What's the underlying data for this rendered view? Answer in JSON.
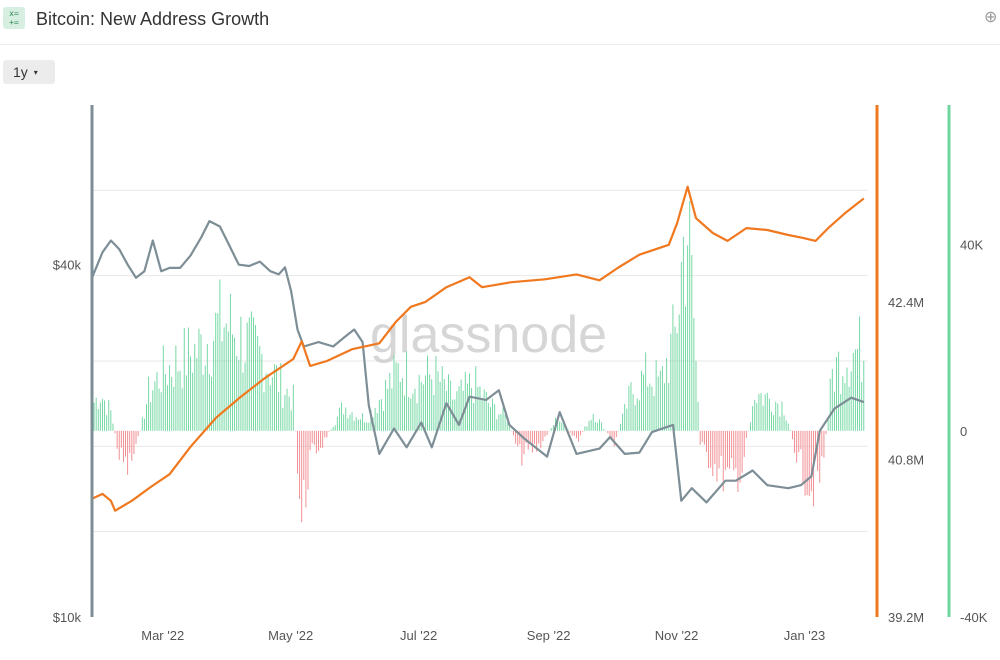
{
  "header": {
    "icon": "calculator-icon",
    "icon_glyph_top": "x=",
    "icon_glyph_bottom": "+=",
    "title": "Bitcoin: New Address Growth",
    "action_icon": "add-circle-icon"
  },
  "controls": {
    "range_label": "1y",
    "range_caret": "▾"
  },
  "watermark": "glassnode",
  "colors": {
    "price_line": "#7d8e96",
    "addresses_line": "#f0781f",
    "bar_positive": "#6fd6a0",
    "bar_negative": "#f08a8f",
    "axis_price": "#7d8e96",
    "axis_addresses": "#f0781f",
    "axis_growth": "#6fd6a0",
    "grid": "#e8e8e8"
  },
  "chart_data": {
    "type": "line",
    "title": "Bitcoin: New Address Growth",
    "x_ticks": [
      "Mar '22",
      "May '22",
      "Jul '22",
      "Sep '22",
      "Nov '22",
      "Jan '23"
    ],
    "x_range": [
      "2022-02-01",
      "2023-02-06"
    ],
    "axes": {
      "price": {
        "side": "left",
        "scale": "log",
        "ticks": [
          "$10k",
          "$40k"
        ],
        "tick_values": [
          10000,
          40000
        ],
        "range": [
          10000,
          75000
        ]
      },
      "addresses": {
        "side": "right",
        "ticks": [
          "39.2M",
          "40.8M",
          "42.4M"
        ],
        "tick_values": [
          39.2,
          40.8,
          42.4
        ],
        "unit": "M",
        "range": [
          39.2,
          44.4
        ]
      },
      "growth": {
        "side": "right",
        "ticks": [
          "-40K",
          "0",
          "40K"
        ],
        "tick_values": [
          -40000,
          0,
          40000
        ],
        "range": [
          -40000,
          70000
        ]
      }
    },
    "grid": true,
    "series": [
      {
        "name": "Price",
        "axis": "price",
        "kind": "line",
        "points": [
          [
            "2022-02-01",
            38000
          ],
          [
            "2022-02-06",
            42000
          ],
          [
            "2022-02-10",
            44000
          ],
          [
            "2022-02-14",
            42500
          ],
          [
            "2022-02-18",
            40000
          ],
          [
            "2022-02-22",
            38000
          ],
          [
            "2022-02-26",
            39000
          ],
          [
            "2022-03-02",
            44000
          ],
          [
            "2022-03-06",
            39000
          ],
          [
            "2022-03-10",
            39500
          ],
          [
            "2022-03-15",
            39500
          ],
          [
            "2022-03-20",
            41500
          ],
          [
            "2022-03-25",
            44500
          ],
          [
            "2022-03-29",
            47500
          ],
          [
            "2022-04-03",
            46500
          ],
          [
            "2022-04-07",
            43500
          ],
          [
            "2022-04-12",
            40000
          ],
          [
            "2022-04-17",
            39800
          ],
          [
            "2022-04-22",
            40500
          ],
          [
            "2022-04-27",
            39000
          ],
          [
            "2022-05-01",
            38500
          ],
          [
            "2022-05-04",
            39600
          ],
          [
            "2022-05-07",
            36000
          ],
          [
            "2022-05-10",
            31000
          ],
          [
            "2022-05-13",
            29000
          ],
          [
            "2022-05-20",
            29500
          ],
          [
            "2022-05-27",
            29000
          ],
          [
            "2022-06-01",
            30000
          ],
          [
            "2022-06-06",
            31000
          ],
          [
            "2022-06-10",
            29500
          ],
          [
            "2022-06-13",
            23000
          ],
          [
            "2022-06-18",
            19000
          ],
          [
            "2022-06-25",
            21000
          ],
          [
            "2022-07-01",
            19500
          ],
          [
            "2022-07-08",
            21500
          ],
          [
            "2022-07-13",
            19500
          ],
          [
            "2022-07-20",
            23200
          ],
          [
            "2022-07-26",
            21300
          ],
          [
            "2022-07-31",
            23800
          ],
          [
            "2022-08-08",
            23500
          ],
          [
            "2022-08-14",
            24400
          ],
          [
            "2022-08-19",
            21300
          ],
          [
            "2022-08-26",
            20200
          ],
          [
            "2022-09-06",
            18800
          ],
          [
            "2022-09-12",
            22400
          ],
          [
            "2022-09-20",
            19000
          ],
          [
            "2022-10-01",
            19400
          ],
          [
            "2022-10-06",
            20300
          ],
          [
            "2022-10-13",
            19000
          ],
          [
            "2022-10-20",
            19100
          ],
          [
            "2022-10-26",
            20700
          ],
          [
            "2022-11-05",
            21300
          ],
          [
            "2022-11-09",
            15800
          ],
          [
            "2022-11-14",
            16600
          ],
          [
            "2022-11-21",
            15700
          ],
          [
            "2022-11-30",
            17100
          ],
          [
            "2022-12-05",
            17100
          ],
          [
            "2022-12-13",
            17800
          ],
          [
            "2022-12-20",
            16800
          ],
          [
            "2022-12-30",
            16600
          ],
          [
            "2023-01-05",
            16800
          ],
          [
            "2023-01-10",
            17400
          ],
          [
            "2023-01-14",
            20800
          ],
          [
            "2023-01-21",
            22700
          ],
          [
            "2023-01-29",
            23700
          ],
          [
            "2023-02-04",
            23300
          ]
        ]
      },
      {
        "name": "Total Addresses",
        "axis": "addresses",
        "kind": "line",
        "points": [
          [
            "2022-02-01",
            40.4
          ],
          [
            "2022-02-06",
            40.45
          ],
          [
            "2022-02-10",
            40.38
          ],
          [
            "2022-02-12",
            40.28
          ],
          [
            "2022-02-20",
            40.38
          ],
          [
            "2022-03-01",
            40.52
          ],
          [
            "2022-03-10",
            40.65
          ],
          [
            "2022-03-20",
            40.93
          ],
          [
            "2022-04-01",
            41.22
          ],
          [
            "2022-04-12",
            41.42
          ],
          [
            "2022-04-24",
            41.62
          ],
          [
            "2022-05-08",
            41.82
          ],
          [
            "2022-05-12",
            42.0
          ],
          [
            "2022-05-16",
            41.75
          ],
          [
            "2022-05-24",
            41.8
          ],
          [
            "2022-06-05",
            41.92
          ],
          [
            "2022-06-18",
            41.98
          ],
          [
            "2022-06-26",
            42.2
          ],
          [
            "2022-07-03",
            42.35
          ],
          [
            "2022-07-10",
            42.4
          ],
          [
            "2022-07-20",
            42.55
          ],
          [
            "2022-07-31",
            42.65
          ],
          [
            "2022-08-06",
            42.55
          ],
          [
            "2022-08-20",
            42.6
          ],
          [
            "2022-09-05",
            42.63
          ],
          [
            "2022-09-20",
            42.68
          ],
          [
            "2022-10-01",
            42.62
          ],
          [
            "2022-10-10",
            42.75
          ],
          [
            "2022-10-20",
            42.88
          ],
          [
            "2022-11-03",
            42.98
          ],
          [
            "2022-11-07",
            43.2
          ],
          [
            "2022-11-12",
            43.57
          ],
          [
            "2022-11-16",
            43.25
          ],
          [
            "2022-11-24",
            43.1
          ],
          [
            "2022-12-01",
            43.02
          ],
          [
            "2022-12-10",
            43.15
          ],
          [
            "2022-12-20",
            43.13
          ],
          [
            "2022-12-30",
            43.08
          ],
          [
            "2023-01-06",
            43.05
          ],
          [
            "2023-01-12",
            43.02
          ],
          [
            "2023-01-18",
            43.15
          ],
          [
            "2023-01-26",
            43.3
          ],
          [
            "2023-02-04",
            43.45
          ]
        ]
      },
      {
        "name": "New Address Growth",
        "axis": "growth",
        "kind": "bar",
        "note": "daily bars, green positive / red negative; envelope values below",
        "envelope": [
          [
            "2022-02-01",
            8000
          ],
          [
            "2022-02-05",
            12000
          ],
          [
            "2022-02-10",
            6000
          ],
          [
            "2022-02-14",
            -8000
          ],
          [
            "2022-02-18",
            -12000
          ],
          [
            "2022-02-22",
            -6000
          ],
          [
            "2022-02-28",
            12000
          ],
          [
            "2022-03-06",
            18000
          ],
          [
            "2022-03-14",
            22000
          ],
          [
            "2022-03-24",
            26000
          ],
          [
            "2022-04-05",
            35000
          ],
          [
            "2022-04-15",
            28000
          ],
          [
            "2022-04-25",
            22000
          ],
          [
            "2022-05-03",
            14000
          ],
          [
            "2022-05-08",
            10000
          ],
          [
            "2022-05-10",
            -10000
          ],
          [
            "2022-05-12",
            -30000
          ],
          [
            "2022-05-16",
            -8000
          ],
          [
            "2022-05-22",
            -4000
          ],
          [
            "2022-06-01",
            8000
          ],
          [
            "2022-06-07",
            5000
          ],
          [
            "2022-06-12",
            4000
          ],
          [
            "2022-06-20",
            12000
          ],
          [
            "2022-06-28",
            20000
          ],
          [
            "2022-07-06",
            16000
          ],
          [
            "2022-07-14",
            18000
          ],
          [
            "2022-07-24",
            10000
          ],
          [
            "2022-08-02",
            15000
          ],
          [
            "2022-08-10",
            8000
          ],
          [
            "2022-08-18",
            4000
          ],
          [
            "2022-08-24",
            -8000
          ],
          [
            "2022-09-02",
            -5000
          ],
          [
            "2022-09-12",
            5000
          ],
          [
            "2022-09-20",
            -4000
          ],
          [
            "2022-09-28",
            6000
          ],
          [
            "2022-10-08",
            -4000
          ],
          [
            "2022-10-16",
            12000
          ],
          [
            "2022-10-24",
            18000
          ],
          [
            "2022-10-30",
            15000
          ],
          [
            "2022-11-06",
            30000
          ],
          [
            "2022-11-10",
            58000
          ],
          [
            "2022-11-12",
            66000
          ],
          [
            "2022-11-15",
            35000
          ],
          [
            "2022-11-18",
            -5000
          ],
          [
            "2022-11-26",
            -12000
          ],
          [
            "2022-12-02",
            -16000
          ],
          [
            "2022-12-08",
            -12000
          ],
          [
            "2022-12-14",
            12000
          ],
          [
            "2022-12-22",
            10000
          ],
          [
            "2022-12-28",
            8000
          ],
          [
            "2023-01-04",
            -10000
          ],
          [
            "2023-01-10",
            -18000
          ],
          [
            "2023-01-15",
            -14000
          ],
          [
            "2023-01-20",
            18000
          ],
          [
            "2023-01-26",
            24000
          ],
          [
            "2023-02-04",
            26000
          ]
        ]
      }
    ]
  }
}
